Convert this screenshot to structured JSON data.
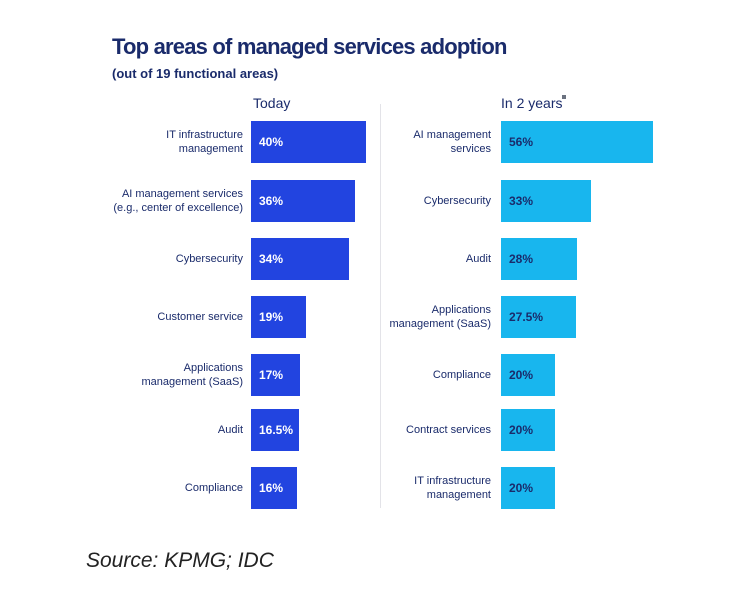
{
  "title": "Top areas of managed services adoption",
  "subtitle": "(out of 19 functional areas)",
  "source": "Source: KPMG; IDC",
  "colors": {
    "today": "#2244e0",
    "future": "#18b6ee",
    "text": "#1a2b6b"
  },
  "chart_data": [
    {
      "type": "bar",
      "orientation": "horizontal",
      "panel_title": "Today",
      "categories": [
        [
          "IT infrastructure",
          "management"
        ],
        [
          "AI management services",
          "(e.g., center of excellence)"
        ],
        [
          "Cybersecurity"
        ],
        [
          "Customer service"
        ],
        [
          "Applications",
          "management (SaaS)"
        ],
        [
          "Audit"
        ],
        [
          "Compliance"
        ]
      ],
      "values": [
        40,
        36,
        34,
        19,
        17,
        16.5,
        16
      ],
      "value_labels": [
        "40%",
        "36%",
        "34%",
        "19%",
        "17%",
        "16.5%",
        "16%"
      ],
      "unit": "%",
      "color": "#2244e0"
    },
    {
      "type": "bar",
      "orientation": "horizontal",
      "panel_title": "In 2 years",
      "categories": [
        [
          "AI management",
          "services"
        ],
        [
          "Cybersecurity"
        ],
        [
          "Audit"
        ],
        [
          "Applications",
          "management (SaaS)"
        ],
        [
          "Compliance"
        ],
        [
          "Contract services"
        ],
        [
          "IT infrastructure",
          "management"
        ]
      ],
      "values": [
        56,
        33,
        28,
        27.5,
        20,
        20,
        20
      ],
      "value_labels": [
        "56%",
        "33%",
        "28%",
        "27.5%",
        "20%",
        "20%",
        "20%"
      ],
      "unit": "%",
      "color": "#18b6ee"
    }
  ]
}
